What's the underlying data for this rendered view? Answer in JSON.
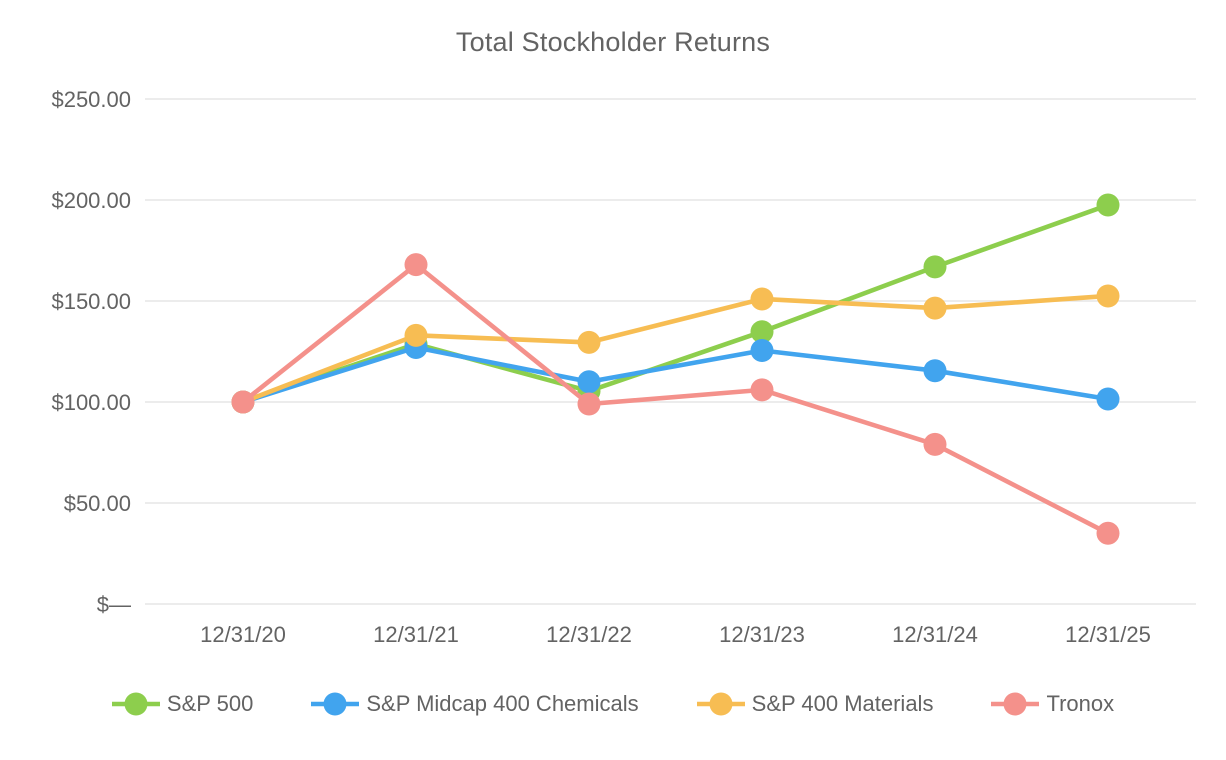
{
  "chart_data": {
    "type": "line",
    "title": "Total Stockholder Returns",
    "categories": [
      "12/31/20",
      "12/31/21",
      "12/31/22",
      "12/31/23",
      "12/31/24",
      "12/31/25"
    ],
    "series": [
      {
        "name": "S&P 500",
        "color": "#8DCE4D",
        "values": [
          100.0,
          128.7,
          105.4,
          134.8,
          166.9,
          197.5
        ]
      },
      {
        "name": "S&P Midcap 400 Chemicals",
        "color": "#41A4EE",
        "values": [
          100.0,
          127.0,
          110.0,
          125.5,
          115.5,
          101.5
        ]
      },
      {
        "name": "S&P 400 Materials",
        "color": "#F7BD53",
        "values": [
          100.0,
          133.0,
          129.5,
          151.0,
          146.5,
          152.5
        ]
      },
      {
        "name": "Tronox",
        "color": "#F4918B",
        "values": [
          100.0,
          168.0,
          99.0,
          106.0,
          79.0,
          35.0
        ]
      }
    ],
    "y_ticks": [
      {
        "value": 250,
        "label": "$250.00"
      },
      {
        "value": 200,
        "label": "$200.00"
      },
      {
        "value": 150,
        "label": "$150.00"
      },
      {
        "value": 100,
        "label": "$100.00"
      },
      {
        "value": 50,
        "label": "$50.00"
      },
      {
        "value": 0,
        "label": "$—"
      }
    ],
    "ylim": [
      0,
      250
    ],
    "grid": true,
    "gridline_color": "#e5e5e5",
    "text_color": "#636363",
    "legend_position": "bottom"
  }
}
